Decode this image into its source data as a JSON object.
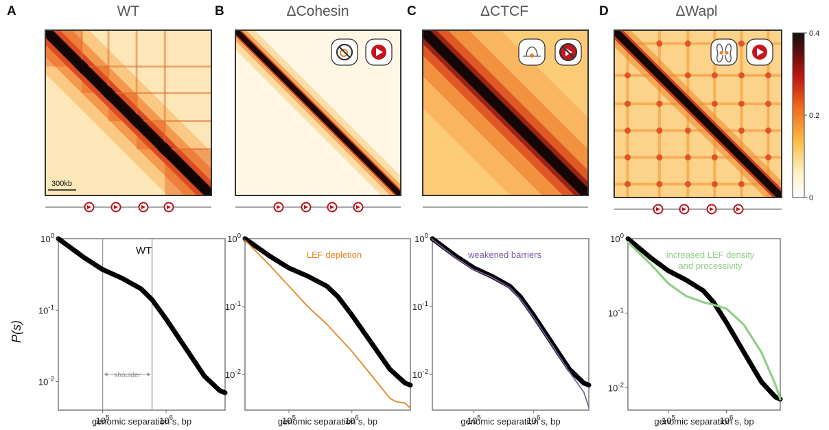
{
  "figure": {
    "ylabel": "P(s)",
    "xlabel": "genomic separation s, bp",
    "scalebar": "300kb",
    "colorbar": {
      "ticks": [
        "0.4",
        "0.2",
        "0"
      ],
      "range": [
        0,
        0.4
      ]
    },
    "panels": [
      {
        "letter": "A",
        "title": "WT"
      },
      {
        "letter": "B",
        "title": "ΔCohesin"
      },
      {
        "letter": "C",
        "title": "ΔCTCF"
      },
      {
        "letter": "D",
        "title": "ΔWapl"
      }
    ]
  },
  "chart_data": [
    {
      "type": "line",
      "panel": "A",
      "title": "WT",
      "xlabel": "genomic separation s, bp",
      "ylabel": "P(s)",
      "xscale": "log",
      "yscale": "log",
      "xlim": [
        20000,
        8500000
      ],
      "ylim": [
        0.004,
        1
      ],
      "yticks": [
        "10^0",
        "10^-1",
        "10^-2"
      ],
      "xticks": [
        "10^5",
        "10^6"
      ],
      "annotation": "shoulder",
      "series": [
        {
          "name": "WT",
          "color": "#000000",
          "x": [
            20000,
            50000,
            100000,
            200000,
            400000,
            600000,
            1000000,
            2000000,
            4000000,
            7000000,
            8500000
          ],
          "y": [
            1.0,
            0.55,
            0.37,
            0.28,
            0.2,
            0.14,
            0.075,
            0.03,
            0.012,
            0.0075,
            0.007
          ]
        }
      ]
    },
    {
      "type": "line",
      "panel": "B",
      "title": "ΔCohesin",
      "xlabel": "genomic separation s, bp",
      "ylabel": "P(s)",
      "xscale": "log",
      "yscale": "log",
      "xlim": [
        20000,
        8500000
      ],
      "ylim": [
        0.003,
        1
      ],
      "yticks": [
        "10^0",
        "10^-1",
        "10^-2"
      ],
      "xticks": [
        "10^5",
        "10^6"
      ],
      "series": [
        {
          "name": "",
          "color": "#000000",
          "x": [
            20000,
            50000,
            100000,
            200000,
            400000,
            600000,
            1000000,
            2000000,
            4000000,
            7000000,
            8500000
          ],
          "y": [
            1.0,
            0.55,
            0.37,
            0.28,
            0.2,
            0.14,
            0.075,
            0.03,
            0.012,
            0.0075,
            0.007
          ]
        },
        {
          "name": "LEF depletion",
          "color": "#E8821E",
          "x": [
            20000,
            50000,
            100000,
            200000,
            400000,
            1000000,
            2000000,
            4000000,
            5000000,
            7000000,
            8500000
          ],
          "y": [
            0.95,
            0.4,
            0.2,
            0.1,
            0.055,
            0.022,
            0.01,
            0.0045,
            0.004,
            0.0038,
            0.0032
          ]
        }
      ]
    },
    {
      "type": "line",
      "panel": "C",
      "title": "ΔCTCF",
      "xlabel": "genomic separation s, bp",
      "ylabel": "P(s)",
      "xscale": "log",
      "yscale": "log",
      "xlim": [
        20000,
        8500000
      ],
      "ylim": [
        0.003,
        1
      ],
      "yticks": [
        "10^0",
        "10^-1",
        "10^-2"
      ],
      "xticks": [
        "10^5",
        "10^6"
      ],
      "series": [
        {
          "name": "",
          "color": "#000000",
          "x": [
            20000,
            50000,
            100000,
            200000,
            400000,
            600000,
            1000000,
            2000000,
            4000000,
            7000000,
            8500000
          ],
          "y": [
            1.0,
            0.55,
            0.37,
            0.28,
            0.2,
            0.14,
            0.075,
            0.03,
            0.012,
            0.0075,
            0.007
          ]
        },
        {
          "name": "weakened barriers",
          "color": "#7B5EA7",
          "x": [
            20000,
            50000,
            100000,
            200000,
            400000,
            600000,
            1000000,
            2000000,
            4000000,
            7000000,
            8500000
          ],
          "y": [
            0.97,
            0.52,
            0.35,
            0.27,
            0.19,
            0.13,
            0.07,
            0.028,
            0.011,
            0.0055,
            0.0033
          ]
        }
      ]
    },
    {
      "type": "line",
      "panel": "D",
      "title": "ΔWapl",
      "xlabel": "genomic separation s, bp",
      "ylabel": "P(s)",
      "xscale": "log",
      "yscale": "log",
      "xlim": [
        20000,
        8500000
      ],
      "ylim": [
        0.005,
        1
      ],
      "yticks": [
        "10^0",
        "10^-1",
        "10^-2"
      ],
      "xticks": [
        "10^5",
        "10^6"
      ],
      "series": [
        {
          "name": "",
          "color": "#000000",
          "x": [
            20000,
            50000,
            100000,
            200000,
            400000,
            600000,
            1000000,
            2000000,
            4000000,
            7000000,
            8500000
          ],
          "y": [
            1.0,
            0.55,
            0.37,
            0.28,
            0.2,
            0.14,
            0.075,
            0.03,
            0.012,
            0.0075,
            0.007
          ]
        },
        {
          "name": "increased LEF density and processivity",
          "color": "#8FCF86",
          "x": [
            20000,
            50000,
            100000,
            200000,
            400000,
            600000,
            1000000,
            2000000,
            4000000,
            7000000,
            8500000
          ],
          "y": [
            0.9,
            0.45,
            0.25,
            0.17,
            0.14,
            0.13,
            0.115,
            0.07,
            0.03,
            0.011,
            0.007
          ]
        }
      ]
    }
  ]
}
